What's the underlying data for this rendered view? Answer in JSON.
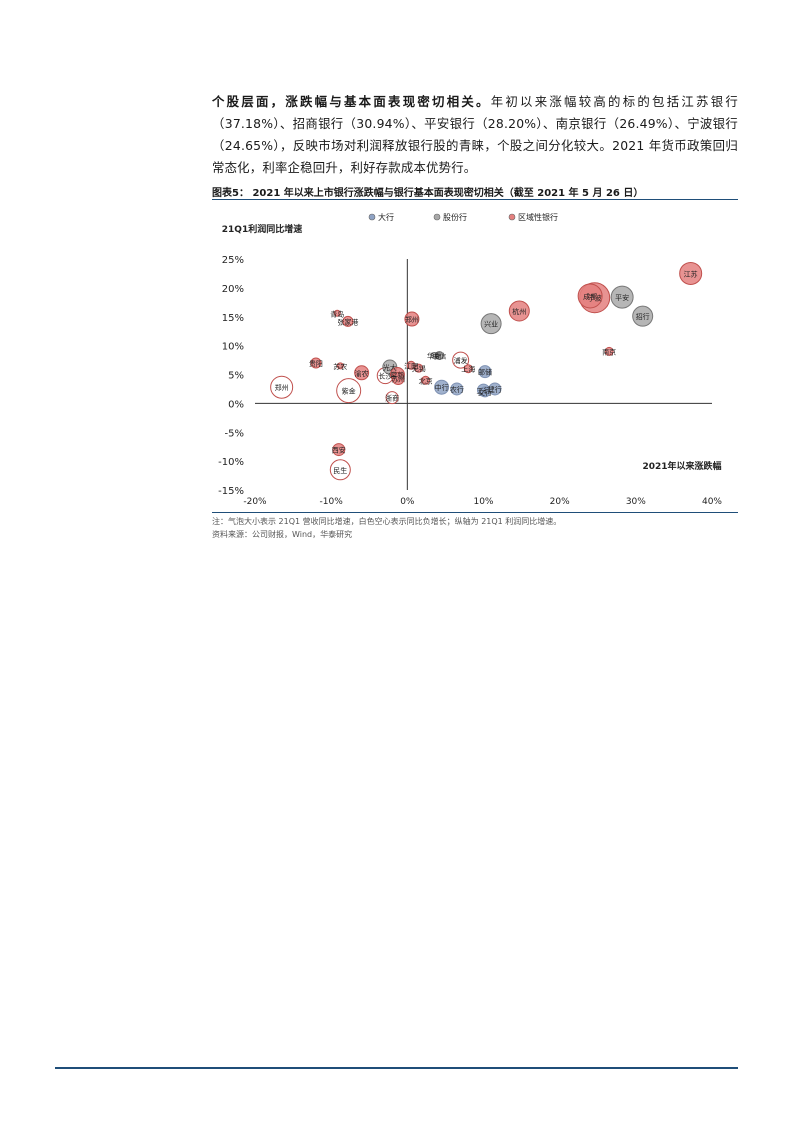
{
  "paragraph": {
    "lead": "个股层面，涨跌幅与基本面表现密切相关。",
    "body": "年初以来涨幅较高的标的包括江苏银行（37.18%）、招商银行（30.94%）、平安银行（28.20%）、南京银行（26.49%）、宁波银行（24.65%），反映市场对利润释放银行股的青睐，个股之间分化较大。2021 年货币政策回归常态化，利率企稳回升，利好存款成本优势行。"
  },
  "figure": {
    "title": "图表5：  2021 年以来上市银行涨跌幅与银行基本面表现密切相关（截至 2021 年 5 月 26 日）",
    "note": "注：气泡大小表示 21Q1 营收同比增速，白色空心表示同比负增长；纵轴为 21Q1 利润同比增速。",
    "source": "资料来源：公司财报，Wind，华泰研究"
  },
  "colors": {
    "big": "#8fa3c4",
    "joint": "#a9a9a9",
    "regional": "#e4807f",
    "regional_edge": "#c0504d",
    "hollow_edge": "#c0504d",
    "axis": "#333333"
  },
  "chart_data": {
    "type": "scatter",
    "xlabel": "2021年以来涨跌幅",
    "ylabel": "21Q1利润同比增速",
    "xlim": [
      -20,
      40
    ],
    "ylim": [
      -15,
      25
    ],
    "xticks": [
      "-20%",
      "-10%",
      "0%",
      "10%",
      "20%",
      "30%",
      "40%"
    ],
    "yticks": [
      "25%",
      "20%",
      "15%",
      "10%",
      "5%",
      "0%",
      "-5%",
      "-10%",
      "-15%"
    ],
    "legend": [
      "大行",
      "股份行",
      "区域性银行"
    ],
    "legend_position": "top",
    "series": [
      {
        "name": "大行",
        "points": [
          {
            "label": "建行",
            "x": 11.5,
            "y": 2.5,
            "r": 6
          },
          {
            "label": "工行",
            "x": 10,
            "y": 2.3,
            "r": 6
          },
          {
            "label": "农行",
            "x": 6.5,
            "y": 2.5,
            "r": 6
          },
          {
            "label": "中行",
            "x": 4.5,
            "y": 2.8,
            "r": 7
          },
          {
            "label": "交行",
            "x": 10.2,
            "y": 2.0,
            "r": 5
          },
          {
            "label": "邮储",
            "x": 10.2,
            "y": 5.5,
            "r": 6
          }
        ]
      },
      {
        "name": "股份行",
        "points": [
          {
            "label": "平安",
            "x": 28.2,
            "y": 18.4,
            "r": 11
          },
          {
            "label": "招行",
            "x": 30.9,
            "y": 15.1,
            "r": 10
          },
          {
            "label": "兴业",
            "x": 11,
            "y": 13.8,
            "r": 10
          },
          {
            "label": "浦发",
            "x": 7,
            "y": 7.5,
            "r": 8,
            "hollow": true
          },
          {
            "label": "中信",
            "x": 4.2,
            "y": 8.3,
            "r": 4
          },
          {
            "label": "华夏",
            "x": 3.5,
            "y": 8.3,
            "r": 3
          },
          {
            "label": "光大",
            "x": -2.3,
            "y": 6.3,
            "r": 7
          },
          {
            "label": "浙商",
            "x": -2.0,
            "y": 1.0,
            "r": 6,
            "hollow": true
          },
          {
            "label": "民生",
            "x": -8.8,
            "y": -11.5,
            "r": 10,
            "hollow": true
          }
        ]
      },
      {
        "name": "区域性银行",
        "points": [
          {
            "label": "江苏",
            "x": 37.2,
            "y": 22.5,
            "r": 11
          },
          {
            "label": "成都",
            "x": 24.0,
            "y": 18.6,
            "r": 12
          },
          {
            "label": "宁波",
            "x": 24.6,
            "y": 18.3,
            "r": 15
          },
          {
            "label": "南京",
            "x": 26.5,
            "y": 9.0,
            "r": 4
          },
          {
            "label": "杭州",
            "x": 14.7,
            "y": 16.0,
            "r": 10
          },
          {
            "label": "郑州",
            "x": 0.6,
            "y": 14.6,
            "r": 7
          },
          {
            "label": "青岛",
            "x": -9.2,
            "y": 15.6,
            "r": 3
          },
          {
            "label": "张家港",
            "x": -7.8,
            "y": 14.2,
            "r": 5
          },
          {
            "label": "苏农",
            "x": -8.8,
            "y": 6.5,
            "r": 3
          },
          {
            "label": "贵阳",
            "x": -12.0,
            "y": 7.0,
            "r": 5
          },
          {
            "label": "渝农",
            "x": -6.0,
            "y": 5.3,
            "r": 7
          },
          {
            "label": "郑州",
            "x": -16.5,
            "y": 2.8,
            "r": 11,
            "hollow": true
          },
          {
            "label": "紫金",
            "x": -7.7,
            "y": 2.2,
            "r": 12,
            "hollow": true
          },
          {
            "label": "常熟",
            "x": -1.3,
            "y": 5.0,
            "r": 7
          },
          {
            "label": "长沙",
            "x": -2.9,
            "y": 4.8,
            "r": 8,
            "hollow": true
          },
          {
            "label": "苏州",
            "x": -1.2,
            "y": 4.3,
            "r": 6
          },
          {
            "label": "江阴",
            "x": 0.5,
            "y": 6.6,
            "r": 4
          },
          {
            "label": "无锡",
            "x": 1.5,
            "y": 6.1,
            "r": 4
          },
          {
            "label": "北京",
            "x": 2.4,
            "y": 4.0,
            "r": 4
          },
          {
            "label": "上海",
            "x": 8.0,
            "y": 6.0,
            "r": 4
          },
          {
            "label": "西安",
            "x": -9.0,
            "y": -8.0,
            "r": 6
          }
        ]
      }
    ]
  }
}
